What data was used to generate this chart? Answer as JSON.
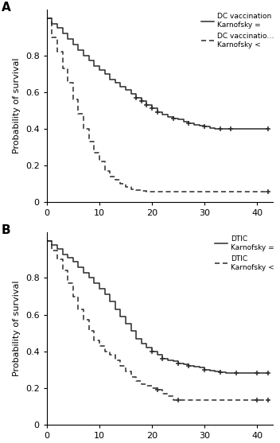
{
  "panel_A": {
    "label": "A",
    "solid_label_line1": "DC vaccination",
    "solid_label_line2": "Karnofsky =",
    "dashed_label_line1": "DC vaccinatio…",
    "dashed_label_line2": "Karnofsky <",
    "solid_times": [
      0,
      1,
      2,
      3,
      4,
      5,
      6,
      7,
      8,
      9,
      10,
      11,
      12,
      13,
      14,
      15,
      16,
      17,
      18,
      19,
      20,
      21,
      22,
      23,
      24,
      25,
      26,
      27,
      28,
      29,
      30,
      31,
      32,
      33,
      34,
      35,
      36,
      37,
      38,
      39,
      40,
      41,
      42
    ],
    "solid_surv": [
      1.0,
      0.97,
      0.95,
      0.92,
      0.89,
      0.86,
      0.83,
      0.8,
      0.77,
      0.74,
      0.72,
      0.7,
      0.67,
      0.65,
      0.63,
      0.61,
      0.59,
      0.57,
      0.55,
      0.53,
      0.51,
      0.49,
      0.475,
      0.465,
      0.455,
      0.45,
      0.44,
      0.43,
      0.42,
      0.415,
      0.41,
      0.405,
      0.4,
      0.4,
      0.4,
      0.4,
      0.4,
      0.4,
      0.4,
      0.4,
      0.4,
      0.4,
      0.4
    ],
    "solid_censors": [
      17,
      18,
      19,
      20,
      21,
      24,
      27,
      30,
      33,
      35,
      42
    ],
    "solid_censor_surv": [
      0.57,
      0.55,
      0.53,
      0.51,
      0.49,
      0.455,
      0.43,
      0.41,
      0.4,
      0.4,
      0.4
    ],
    "dashed_times": [
      0,
      1,
      2,
      3,
      4,
      5,
      6,
      7,
      8,
      9,
      10,
      11,
      12,
      13,
      14,
      15,
      16,
      17,
      18,
      19,
      20,
      21,
      22,
      25,
      30,
      35,
      40,
      41,
      42
    ],
    "dashed_surv": [
      1.0,
      0.9,
      0.82,
      0.73,
      0.65,
      0.56,
      0.48,
      0.4,
      0.33,
      0.27,
      0.22,
      0.17,
      0.14,
      0.12,
      0.1,
      0.08,
      0.07,
      0.065,
      0.06,
      0.055,
      0.055,
      0.055,
      0.055,
      0.055,
      0.055,
      0.055,
      0.055,
      0.055,
      0.055
    ],
    "dashed_censors": [
      42
    ],
    "dashed_censor_surv": [
      0.055
    ]
  },
  "panel_B": {
    "label": "B",
    "solid_label_line1": "DTIC",
    "solid_label_line2": "Karnofsky =",
    "dashed_label_line1": "DTIC",
    "dashed_label_line2": "Karnofsky <",
    "solid_times": [
      0,
      1,
      2,
      3,
      4,
      5,
      6,
      7,
      8,
      9,
      10,
      11,
      12,
      13,
      14,
      15,
      16,
      17,
      18,
      19,
      20,
      21,
      22,
      23,
      24,
      25,
      26,
      27,
      28,
      29,
      30,
      31,
      32,
      33,
      34,
      35,
      36,
      37,
      38,
      39,
      40,
      41,
      42
    ],
    "solid_surv": [
      1.0,
      0.98,
      0.96,
      0.93,
      0.91,
      0.89,
      0.86,
      0.83,
      0.8,
      0.77,
      0.74,
      0.71,
      0.67,
      0.63,
      0.59,
      0.55,
      0.51,
      0.47,
      0.44,
      0.42,
      0.4,
      0.38,
      0.36,
      0.35,
      0.345,
      0.335,
      0.33,
      0.32,
      0.315,
      0.31,
      0.3,
      0.295,
      0.29,
      0.285,
      0.28,
      0.28,
      0.28,
      0.28,
      0.28,
      0.28,
      0.28,
      0.28,
      0.28
    ],
    "solid_censors": [
      20,
      22,
      25,
      27,
      30,
      33,
      36,
      40,
      42
    ],
    "solid_censor_surv": [
      0.4,
      0.36,
      0.335,
      0.32,
      0.3,
      0.285,
      0.28,
      0.28,
      0.28
    ],
    "dashed_times": [
      0,
      1,
      2,
      3,
      4,
      5,
      6,
      7,
      8,
      9,
      10,
      11,
      12,
      13,
      14,
      15,
      16,
      17,
      18,
      19,
      20,
      21,
      22,
      23,
      24,
      25,
      26,
      30,
      35,
      40,
      41,
      42
    ],
    "dashed_surv": [
      1.0,
      0.95,
      0.9,
      0.84,
      0.77,
      0.7,
      0.63,
      0.57,
      0.51,
      0.46,
      0.43,
      0.4,
      0.38,
      0.35,
      0.32,
      0.29,
      0.26,
      0.24,
      0.22,
      0.21,
      0.2,
      0.19,
      0.17,
      0.155,
      0.135,
      0.135,
      0.135,
      0.135,
      0.135,
      0.135,
      0.135,
      0.135
    ],
    "dashed_censors": [
      21,
      25,
      40,
      42
    ],
    "dashed_censor_surv": [
      0.19,
      0.135,
      0.135,
      0.135
    ]
  },
  "ylabel": "Probability of survival",
  "xlim": [
    0,
    43
  ],
  "ylim": [
    0,
    1.05
  ],
  "xticks": [
    0,
    10,
    20,
    30,
    40
  ],
  "yticks": [
    0,
    0.2,
    0.4,
    0.6,
    0.8
  ],
  "ytick_labels": [
    "0",
    "0.2",
    "0.4",
    "0.6",
    "0.8"
  ],
  "bg_color": "#ffffff",
  "line_color": "#2a2a2a"
}
